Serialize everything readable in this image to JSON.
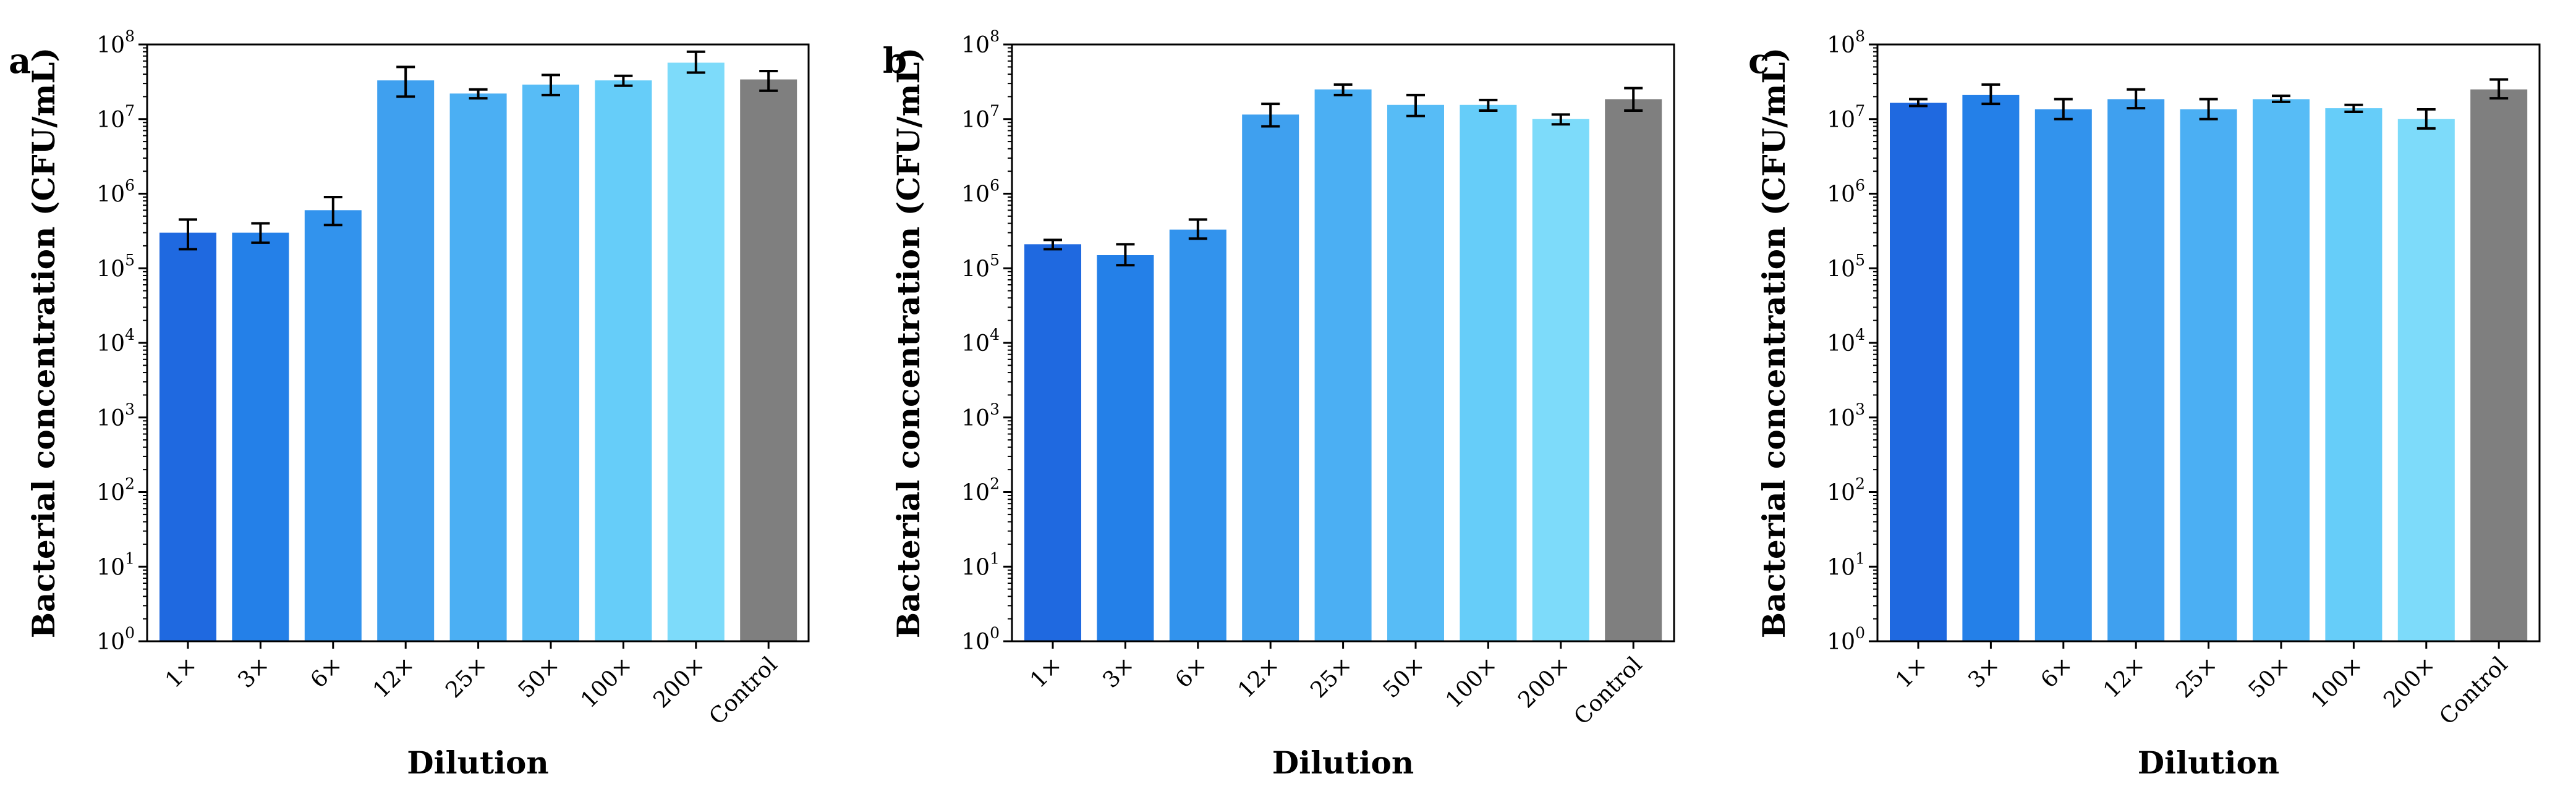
{
  "figure": {
    "colors": {
      "series": [
        "#1f69e0",
        "#2480e8",
        "#3293ed",
        "#3fa0ef",
        "#4baff3",
        "#57bcf6",
        "#66cdf9",
        "#7ddbfa"
      ],
      "control": "#7f7f7f",
      "axis": "#000000",
      "error_bar": "#000000"
    }
  },
  "chart_data": [
    {
      "type": "bar",
      "panel_label": "a",
      "xlabel": "Dilution",
      "ylabel": "Bacterial concentration (CFU/mL)",
      "yscale": "log",
      "ylim": [
        1,
        100000000
      ],
      "ytick_base": "10",
      "ytick_exponents": [
        "0",
        "1",
        "2",
        "3",
        "4",
        "5",
        "6",
        "7",
        "8"
      ],
      "categories": [
        "1×",
        "3×",
        "6×",
        "12×",
        "25×",
        "50×",
        "100×",
        "200×",
        "Control"
      ],
      "values": [
        300000,
        300000,
        600000,
        33000000,
        22000000,
        29000000,
        33000000,
        57000000,
        34000000
      ],
      "error_low": [
        180000,
        220000,
        380000,
        20000000,
        19000000,
        21000000,
        28000000,
        42000000,
        24000000
      ],
      "error_high": [
        450000,
        400000,
        900000,
        50000000,
        25000000,
        39000000,
        38000000,
        80000000,
        44000000
      ]
    },
    {
      "type": "bar",
      "panel_label": "b",
      "xlabel": "Dilution",
      "ylabel": "Bacterial concentration (CFU/mL)",
      "yscale": "log",
      "ylim": [
        1,
        100000000
      ],
      "ytick_base": "10",
      "ytick_exponents": [
        "0",
        "1",
        "2",
        "3",
        "4",
        "5",
        "6",
        "7",
        "8"
      ],
      "categories": [
        "1×",
        "3×",
        "6×",
        "12×",
        "25×",
        "50×",
        "100×",
        "200×",
        "Control"
      ],
      "values": [
        210000,
        150000,
        330000,
        11500000,
        25000000,
        15500000,
        15500000,
        10000000,
        18500000
      ],
      "error_low": [
        180000,
        110000,
        250000,
        8000000,
        21000000,
        11000000,
        13000000,
        8500000,
        13000000
      ],
      "error_high": [
        240000,
        210000,
        450000,
        16000000,
        29000000,
        21000000,
        18000000,
        11500000,
        26000000
      ]
    },
    {
      "type": "bar",
      "panel_label": "c",
      "xlabel": "Dilution",
      "ylabel": "Bacterial concentration (CFU/mL)",
      "yscale": "log",
      "ylim": [
        1,
        100000000
      ],
      "ytick_base": "10",
      "ytick_exponents": [
        "0",
        "1",
        "2",
        "3",
        "4",
        "5",
        "6",
        "7",
        "8"
      ],
      "categories": [
        "1×",
        "3×",
        "6×",
        "12×",
        "25×",
        "50×",
        "100×",
        "200×",
        "Control"
      ],
      "values": [
        16500000,
        21000000,
        13500000,
        18500000,
        13500000,
        18500000,
        14000000,
        10000000,
        25000000
      ],
      "error_low": [
        15000000,
        16000000,
        10000000,
        14000000,
        10000000,
        17000000,
        12500000,
        7500000,
        19000000
      ],
      "error_high": [
        18500000,
        29000000,
        18500000,
        25000000,
        18500000,
        20500000,
        15500000,
        13500000,
        34000000
      ]
    }
  ]
}
